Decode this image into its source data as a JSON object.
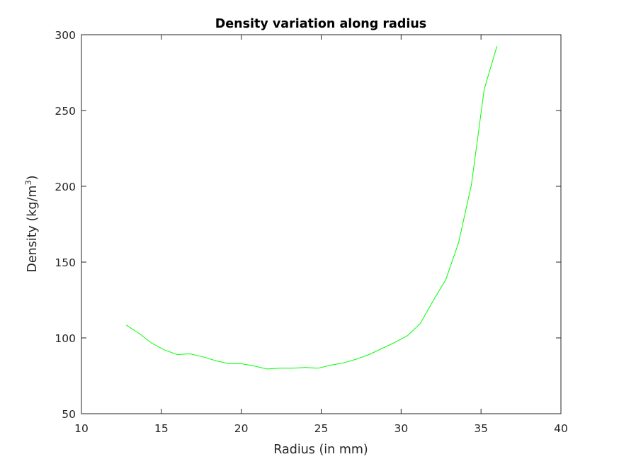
{
  "chart_data": {
    "type": "line",
    "title": "Density variation along radius",
    "xlabel": "Radius (in mm)",
    "ylabel": "Density (kg/m",
    "ylabel_sup": "3",
    "ylabel_close": ")",
    "xlim": [
      10,
      40
    ],
    "ylim": [
      50,
      300
    ],
    "xticks": [
      10,
      15,
      20,
      25,
      30,
      35,
      40
    ],
    "yticks": [
      50,
      100,
      150,
      200,
      250,
      300
    ],
    "grid": false,
    "line_color": "#00ff00",
    "series": [
      {
        "x": [
          12.8,
          13.6,
          14.4,
          15.2,
          16.0,
          16.8,
          17.6,
          18.4,
          19.2,
          20.0,
          20.8,
          21.6,
          22.4,
          23.2,
          24.0,
          24.8,
          25.6,
          26.4,
          27.2,
          28.0,
          28.8,
          29.6,
          30.4,
          31.2,
          32.0,
          32.8,
          33.6,
          34.4,
          35.2,
          36.0
        ],
        "y": [
          108.5,
          103.0,
          96.5,
          92.0,
          89.0,
          89.5,
          87.5,
          85.0,
          83.0,
          83.0,
          81.5,
          79.5,
          80.0,
          80.0,
          80.5,
          80.0,
          82.0,
          83.5,
          86.0,
          89.0,
          93.0,
          97.0,
          101.5,
          109.5,
          124.5,
          138.5,
          163.0,
          201.0,
          264.0,
          292.5
        ]
      }
    ]
  }
}
